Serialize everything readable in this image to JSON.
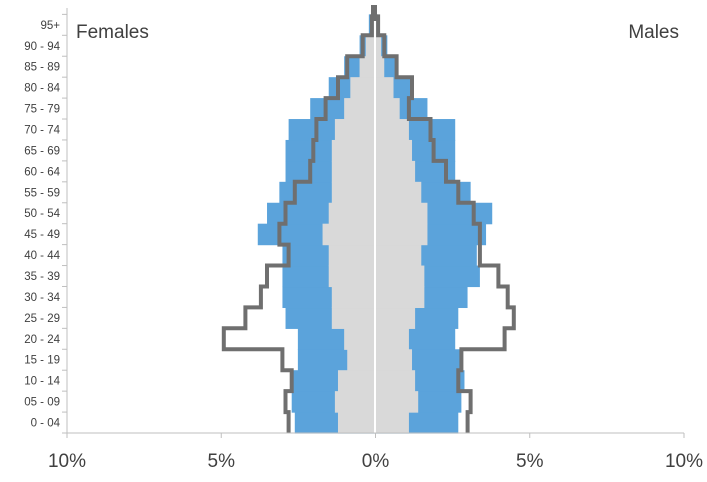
{
  "chart_data": {
    "type": "bar",
    "orientation": "horizontal-population-pyramid",
    "categories": [
      "0 - 04",
      "05 - 09",
      "10 - 14",
      "15 - 19",
      "20 - 24",
      "25 - 29",
      "30 - 34",
      "35 - 39",
      "40 - 44",
      "45 - 49",
      "50 - 54",
      "55 - 59",
      "60 - 64",
      "65 - 69",
      "70 - 74",
      "75 - 79",
      "80 - 84",
      "85 - 89",
      "90 - 94",
      "95+"
    ],
    "labels": {
      "left": "Females",
      "right": "Males"
    },
    "x_ticks": [
      "10%",
      "5%",
      "0%",
      "5%",
      "10%"
    ],
    "xlim": [
      -10,
      10
    ],
    "series": [
      {
        "role": "blue-bars",
        "color": "#5ba3db",
        "females": [
          2.6,
          2.7,
          2.7,
          2.5,
          2.5,
          2.9,
          3.0,
          3.0,
          3.0,
          3.8,
          3.5,
          3.1,
          2.9,
          2.9,
          2.8,
          2.1,
          1.5,
          1.0,
          0.5,
          0.2
        ],
        "males": [
          2.7,
          2.8,
          2.9,
          2.8,
          2.6,
          2.7,
          3.0,
          3.4,
          3.3,
          3.6,
          3.8,
          3.1,
          2.6,
          2.6,
          2.6,
          1.7,
          1.2,
          0.7,
          0.4,
          0.1
        ]
      },
      {
        "role": "grey-bars",
        "color": "#d9d9d9",
        "females": [
          1.2,
          1.3,
          1.2,
          0.9,
          1.0,
          1.4,
          1.4,
          1.5,
          1.5,
          1.7,
          1.5,
          1.4,
          1.4,
          1.4,
          1.3,
          1.0,
          0.8,
          0.5,
          0.3,
          0.1
        ],
        "males": [
          1.1,
          1.4,
          1.3,
          1.2,
          1.1,
          1.3,
          1.6,
          1.6,
          1.5,
          1.7,
          1.7,
          1.5,
          1.3,
          1.2,
          1.1,
          0.8,
          0.6,
          0.3,
          0.2,
          0.1
        ]
      },
      {
        "role": "outline-step",
        "color": "#6f6f6f",
        "females": [
          2.8,
          2.9,
          2.7,
          3.0,
          4.9,
          4.2,
          3.7,
          3.5,
          2.8,
          3.1,
          2.9,
          2.6,
          2.1,
          2.0,
          1.9,
          1.6,
          1.2,
          0.9,
          0.4,
          0.1
        ],
        "males": [
          3.0,
          3.1,
          2.7,
          2.8,
          4.2,
          4.5,
          4.3,
          4.0,
          3.4,
          3.4,
          3.2,
          2.7,
          2.3,
          1.9,
          1.8,
          1.1,
          1.2,
          0.7,
          0.3,
          0.1
        ]
      }
    ]
  }
}
